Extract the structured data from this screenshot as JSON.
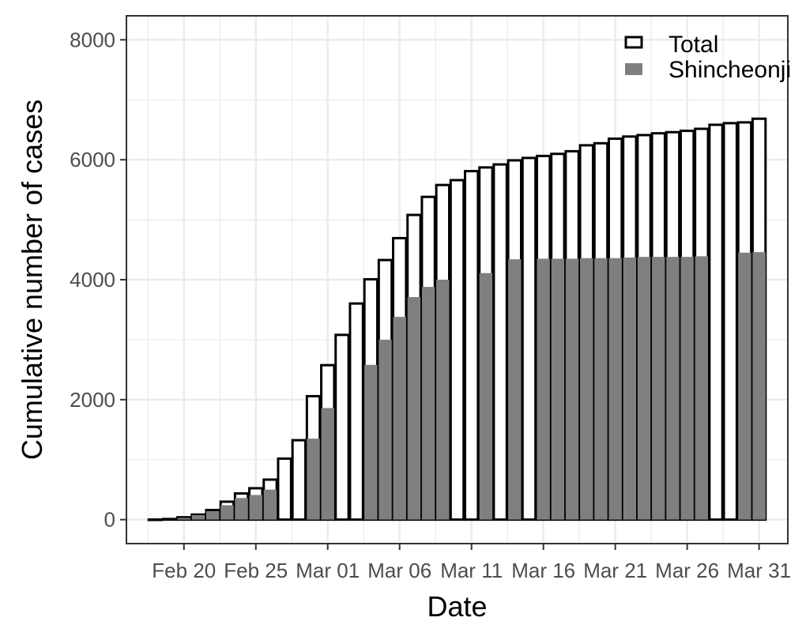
{
  "chart_data": {
    "type": "bar",
    "xlabel": "Date",
    "ylabel": "Cumulative number of cases",
    "ylim": [
      -400,
      8400
    ],
    "yticks": [
      0,
      2000,
      4000,
      6000,
      8000
    ],
    "xtick_labels": [
      "Feb 20",
      "Feb 25",
      "Mar 01",
      "Mar 06",
      "Mar 11",
      "Mar 16",
      "Mar 21",
      "Mar 26",
      "Mar 31"
    ],
    "xtick_dates": [
      "2020-02-20",
      "2020-02-25",
      "2020-03-01",
      "2020-03-06",
      "2020-03-11",
      "2020-03-16",
      "2020-03-21",
      "2020-03-26",
      "2020-03-31"
    ],
    "x": [
      "2020-02-18",
      "2020-02-19",
      "2020-02-20",
      "2020-02-21",
      "2020-02-22",
      "2020-02-23",
      "2020-02-24",
      "2020-02-25",
      "2020-02-26",
      "2020-02-27",
      "2020-02-28",
      "2020-02-29",
      "2020-03-01",
      "2020-03-02",
      "2020-03-03",
      "2020-03-04",
      "2020-03-05",
      "2020-03-06",
      "2020-03-07",
      "2020-03-08",
      "2020-03-09",
      "2020-03-10",
      "2020-03-11",
      "2020-03-12",
      "2020-03-13",
      "2020-03-14",
      "2020-03-15",
      "2020-03-16",
      "2020-03-17",
      "2020-03-18",
      "2020-03-19",
      "2020-03-20",
      "2020-03-21",
      "2020-03-22",
      "2020-03-23",
      "2020-03-24",
      "2020-03-25",
      "2020-03-26",
      "2020-03-27",
      "2020-03-28",
      "2020-03-29",
      "2020-03-30",
      "2020-03-31"
    ],
    "series": [
      {
        "name": "Total",
        "values": [
          1,
          10,
          39,
          84,
          160,
          299,
          436,
          523,
          667,
          1017,
          1324,
          2058,
          2575,
          3080,
          3603,
          4007,
          4328,
          4693,
          5080,
          5381,
          5579,
          5660,
          5810,
          5872,
          5922,
          5990,
          6030,
          6063,
          6098,
          6142,
          6241,
          6275,
          6351,
          6387,
          6411,
          6441,
          6460,
          6482,
          6516,
          6583,
          6610,
          6623,
          6684
        ],
        "fill": "#ffffff",
        "stroke": "#000000"
      },
      {
        "name": "Shincheonji",
        "values": [
          0,
          0,
          28,
          76,
          140,
          240,
          360,
          410,
          500,
          0,
          0,
          1350,
          1860,
          0,
          0,
          2580,
          3000,
          3380,
          3710,
          3880,
          4000,
          0,
          0,
          4110,
          0,
          4340,
          0,
          4350,
          4350,
          4350,
          4360,
          4360,
          4360,
          4370,
          4380,
          4380,
          4380,
          4380,
          4390,
          0,
          0,
          4450,
          4460
        ],
        "fill": "#7f7f7f"
      }
    ],
    "grid": true,
    "legend": "top-right",
    "colors": {
      "panel_border": "#333333",
      "grid": "#ebebeb",
      "shincheonji": "#7f7f7f",
      "total_outline": "#000000"
    }
  }
}
